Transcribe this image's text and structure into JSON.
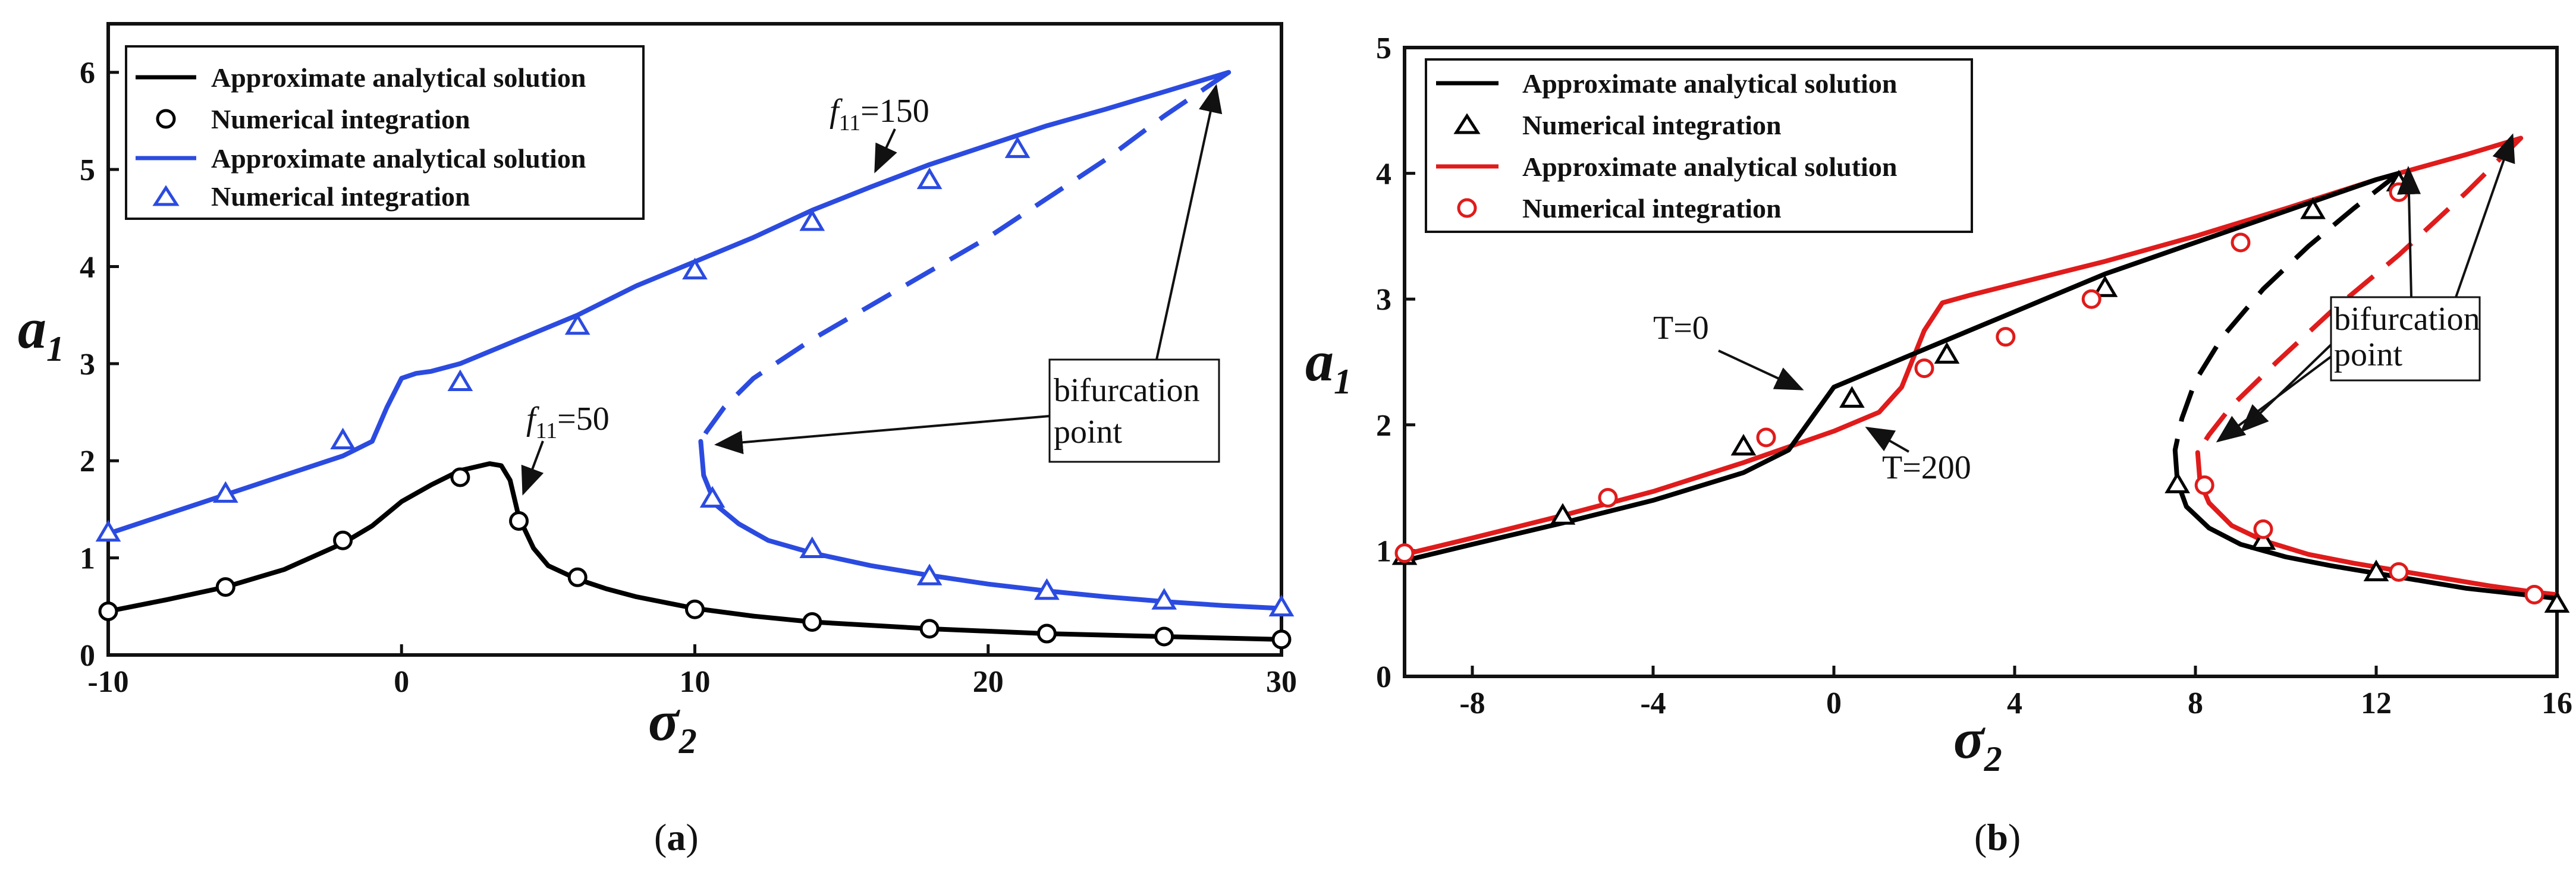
{
  "chart_data": [
    {
      "type": "line",
      "panel": "(a)",
      "caption_letter": "a",
      "xlabel": "σ2",
      "ylabel": "a1",
      "xlim": [
        -10,
        30
      ],
      "ylim": [
        0,
        6.5
      ],
      "xticks": [
        -10,
        0,
        10,
        20,
        30
      ],
      "yticks": [
        0,
        1,
        2,
        3,
        4,
        5,
        6
      ],
      "legend": [
        {
          "label": "Approximate analytical solution",
          "color": "#000000",
          "kind": "line"
        },
        {
          "label": "Numerical integration",
          "color": "#000000",
          "kind": "circle"
        },
        {
          "label": "Approximate analytical solution",
          "color": "#2b4be0",
          "kind": "line"
        },
        {
          "label": "Numerical integration",
          "color": "#2b4be0",
          "kind": "triangle"
        }
      ],
      "series": [
        {
          "name": "f11=50 analytical",
          "color": "#000000",
          "style": "solid",
          "x": [
            -10,
            -8,
            -6,
            -4,
            -2,
            -1,
            0,
            1,
            2,
            3,
            3.4,
            3.7,
            4.0,
            4.5,
            5,
            6,
            7,
            8,
            10,
            12,
            14,
            18,
            22,
            26,
            30
          ],
          "y": [
            0.45,
            0.57,
            0.7,
            0.88,
            1.15,
            1.33,
            1.58,
            1.75,
            1.9,
            1.97,
            1.95,
            1.8,
            1.42,
            1.1,
            0.92,
            0.78,
            0.68,
            0.6,
            0.48,
            0.4,
            0.34,
            0.27,
            0.22,
            0.19,
            0.16
          ]
        },
        {
          "name": "f11=50 numerical",
          "color": "#000000",
          "marker": "circle",
          "x": [
            -10,
            -6,
            -2,
            2,
            4,
            6,
            10,
            14,
            18,
            22,
            26,
            30
          ],
          "y": [
            0.45,
            0.7,
            1.18,
            1.83,
            1.38,
            0.8,
            0.47,
            0.34,
            0.27,
            0.22,
            0.19,
            0.16
          ]
        },
        {
          "name": "f11=150 analytical upper",
          "color": "#2b4be0",
          "style": "solid",
          "x": [
            -10,
            -8,
            -6,
            -4,
            -2,
            -1,
            -0.5,
            0,
            0.5,
            1,
            2,
            4,
            6,
            8,
            10,
            12,
            14,
            16,
            18,
            20,
            22,
            24,
            26,
            28.2
          ],
          "y": [
            1.25,
            1.45,
            1.65,
            1.85,
            2.05,
            2.2,
            2.55,
            2.85,
            2.9,
            2.92,
            3.0,
            3.25,
            3.5,
            3.8,
            4.05,
            4.3,
            4.58,
            4.82,
            5.05,
            5.25,
            5.45,
            5.62,
            5.8,
            6.0
          ]
        },
        {
          "name": "f11=150 analytical unstable",
          "color": "#2b4be0",
          "style": "dashed",
          "x": [
            28.2,
            26,
            24,
            22,
            20,
            18,
            16,
            14,
            12,
            11,
            10.4,
            10.2
          ],
          "y": [
            6.0,
            5.55,
            5.1,
            4.7,
            4.3,
            3.95,
            3.6,
            3.25,
            2.85,
            2.55,
            2.3,
            2.2
          ]
        },
        {
          "name": "f11=150 analytical lower",
          "color": "#2b4be0",
          "style": "solid",
          "x": [
            10.2,
            10.3,
            10.7,
            11.5,
            12.5,
            14,
            16,
            18,
            20,
            22,
            24,
            26,
            28,
            30
          ],
          "y": [
            2.2,
            1.85,
            1.55,
            1.35,
            1.18,
            1.05,
            0.92,
            0.82,
            0.73,
            0.66,
            0.6,
            0.55,
            0.51,
            0.48
          ]
        },
        {
          "name": "f11=150 numerical",
          "color": "#2b4be0",
          "marker": "triangle",
          "x": [
            -10,
            -6,
            -2,
            2,
            6,
            10,
            14,
            18,
            21,
            10.6,
            14,
            18,
            22,
            26,
            30
          ],
          "y": [
            1.25,
            1.65,
            2.2,
            2.8,
            3.38,
            3.95,
            4.45,
            4.88,
            5.2,
            1.6,
            1.08,
            0.8,
            0.65,
            0.55,
            0.48
          ]
        }
      ],
      "annotations": [
        {
          "text": "f11=150",
          "italic_part": "f",
          "sub": "11",
          "rest": "=150"
        },
        {
          "text": "f11=50",
          "italic_part": "f",
          "sub": "11",
          "rest": "=50"
        },
        {
          "text": "bifurcation point",
          "line1": "bifurcation",
          "line2": "point"
        }
      ]
    },
    {
      "type": "line",
      "panel": "(b)",
      "caption_letter": "b",
      "xlabel": "σ2",
      "ylabel": "a1",
      "xlim": [
        -9.5,
        16
      ],
      "ylim": [
        0,
        5
      ],
      "xticks": [
        -8,
        -4,
        0,
        4,
        8,
        12,
        16
      ],
      "yticks": [
        0,
        1,
        2,
        3,
        4,
        5
      ],
      "legend": [
        {
          "label": "Approximate analytical solution",
          "color": "#000000",
          "kind": "line"
        },
        {
          "label": "Numerical integration",
          "color": "#000000",
          "kind": "triangle"
        },
        {
          "label": "Approximate analytical solution",
          "color": "#e01b1b",
          "kind": "line"
        },
        {
          "label": "Numerical integration",
          "color": "#e01b1b",
          "kind": "circle"
        }
      ],
      "series": [
        {
          "name": "T=0 analytical upper",
          "color": "#000000",
          "style": "solid",
          "x": [
            -9.5,
            -8,
            -6,
            -4,
            -2,
            -1,
            -0.5,
            0,
            1,
            2,
            4,
            6,
            8,
            10,
            12,
            12.5
          ],
          "y": [
            0.92,
            1.05,
            1.22,
            1.4,
            1.62,
            1.8,
            2.05,
            2.3,
            2.45,
            2.6,
            2.9,
            3.2,
            3.45,
            3.7,
            3.95,
            4.0
          ]
        },
        {
          "name": "T=0 analytical unstable",
          "color": "#000000",
          "style": "dashed",
          "x": [
            12.5,
            11.5,
            10.5,
            9.5,
            8.6,
            8,
            7.7,
            7.55
          ],
          "y": [
            4.0,
            3.72,
            3.42,
            3.08,
            2.7,
            2.35,
            2.05,
            1.8
          ]
        },
        {
          "name": "T=0 analytical lower",
          "color": "#000000",
          "style": "solid",
          "x": [
            7.55,
            7.6,
            7.8,
            8.3,
            9,
            10,
            11,
            12,
            13,
            14,
            15,
            16
          ],
          "y": [
            1.8,
            1.55,
            1.35,
            1.18,
            1.05,
            0.95,
            0.88,
            0.82,
            0.76,
            0.7,
            0.66,
            0.62
          ]
        },
        {
          "name": "T=0 numerical",
          "color": "#000000",
          "marker": "triangle",
          "x": [
            -9.5,
            -6,
            -2,
            0.4,
            2.5,
            6,
            10.6,
            12.5,
            7.6,
            9.5,
            12,
            16
          ],
          "y": [
            0.95,
            1.27,
            1.82,
            2.2,
            2.55,
            3.08,
            3.7,
            3.92,
            1.52,
            1.07,
            0.82,
            0.57
          ]
        },
        {
          "name": "T=200 analytical upper",
          "color": "#e01b1b",
          "style": "solid",
          "x": [
            -9.5,
            -8,
            -6,
            -4,
            -2,
            0,
            1,
            1.5,
            2,
            2.4,
            3,
            4,
            6,
            8,
            10,
            12,
            14,
            15.2
          ],
          "y": [
            0.97,
            1.1,
            1.28,
            1.47,
            1.7,
            1.95,
            2.1,
            2.3,
            2.75,
            2.97,
            3.03,
            3.12,
            3.3,
            3.5,
            3.72,
            3.95,
            4.15,
            4.28
          ]
        },
        {
          "name": "T=200 analytical unstable",
          "color": "#e01b1b",
          "style": "dashed",
          "x": [
            15.2,
            14,
            12.5,
            11,
            9.8,
            8.8,
            8.3,
            8.05
          ],
          "y": [
            4.28,
            3.85,
            3.35,
            2.9,
            2.5,
            2.15,
            1.92,
            1.78
          ]
        },
        {
          "name": "T=200 analytical lower",
          "color": "#e01b1b",
          "style": "solid",
          "x": [
            8.05,
            8.1,
            8.3,
            8.8,
            9.5,
            10.5,
            11.5,
            12.5,
            13.5,
            14.5,
            15.5,
            16
          ],
          "y": [
            1.78,
            1.55,
            1.38,
            1.2,
            1.08,
            0.97,
            0.9,
            0.84,
            0.78,
            0.72,
            0.67,
            0.65
          ]
        },
        {
          "name": "T=200 numerical",
          "color": "#e01b1b",
          "marker": "circle",
          "x": [
            -9.5,
            -5,
            -1.5,
            2,
            3.8,
            5.7,
            9,
            12.5,
            8.2,
            9.5,
            12.5,
            15.5
          ],
          "y": [
            0.98,
            1.42,
            1.9,
            2.45,
            2.7,
            3.0,
            3.45,
            3.85,
            1.52,
            1.17,
            0.83,
            0.65
          ]
        }
      ],
      "annotations": [
        {
          "text": "T=0"
        },
        {
          "text": "T=200"
        },
        {
          "text": "bifurcation point",
          "line1": "bifurcation",
          "line2": "point"
        }
      ]
    }
  ]
}
